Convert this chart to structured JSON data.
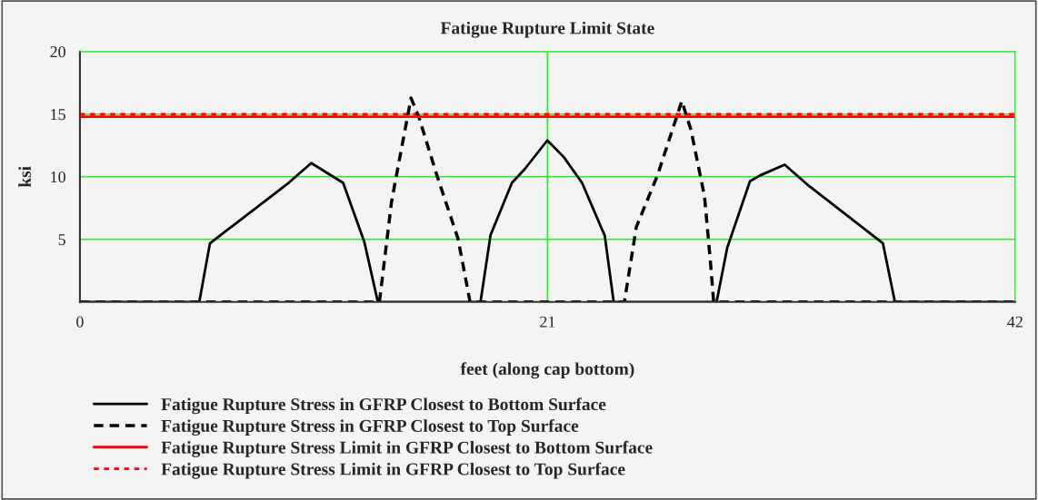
{
  "chart_data": {
    "type": "line",
    "title": "Fatigue Rupture Limit State",
    "xlabel": "feet (along cap bottom)",
    "ylabel": "ksi",
    "xlim": [
      0,
      42
    ],
    "xticks": [
      0,
      21,
      42
    ],
    "ylim": [
      0,
      20
    ],
    "yticks": [
      {
        "value": 0,
        "label": null
      },
      5,
      10,
      15,
      20
    ],
    "grid": true,
    "legend": "bottom",
    "marker": "none",
    "series": [
      {
        "name": "Fatigue Rupture Stress in GFRP Closest to Bottom Surface",
        "color": "#000000",
        "line_style": "solid",
        "x": [
          0,
          5.36,
          5.84,
          9.37,
          10.39,
          11.82,
          12.77,
          13.38,
          17.99,
          18.44,
          19.4,
          19.97,
          20.99,
          21.73,
          22.55,
          23.57,
          23.97,
          28.59,
          29.07,
          30.09,
          30.56,
          31.65,
          32.73,
          36.06,
          36.6,
          42
        ],
        "values": [
          0,
          0,
          4.69,
          9.51,
          11.09,
          9.51,
          4.81,
          0,
          0,
          5.34,
          9.51,
          10.6,
          12.9,
          11.57,
          9.51,
          5.29,
          0,
          0,
          4.33,
          9.64,
          10.12,
          10.96,
          9.28,
          4.69,
          0,
          0
        ]
      },
      {
        "name": "Fatigue Rupture Stress in GFRP Closest to Top Surface",
        "color": "#000000",
        "line_style": "dashed",
        "x": [
          0,
          13.45,
          13.99,
          14.19,
          14.87,
          15.21,
          16.03,
          16.98,
          17.52,
          24.45,
          24.99,
          25.94,
          27.03,
          27.44,
          28.05,
          28.32,
          28.46,
          42
        ],
        "values": [
          0,
          0,
          7.95,
          9.88,
          16.28,
          14.83,
          10.12,
          5.05,
          0,
          0,
          6.01,
          10.12,
          16.04,
          13.75,
          8.43,
          3.1,
          0,
          0
        ]
      },
      {
        "name": "Fatigue Rupture Stress Limit in GFRP Closest to Bottom Surface",
        "color": "#ff0000",
        "line_style": "solid",
        "x": [
          0,
          42
        ],
        "values": [
          14.8,
          14.8
        ]
      },
      {
        "name": "Fatigue Rupture Stress Limit in GFRP Closest to Top Surface",
        "color": "#ff0000",
        "line_style": "dotted",
        "x": [
          0,
          42
        ],
        "values": [
          15.0,
          15.0
        ]
      }
    ]
  }
}
